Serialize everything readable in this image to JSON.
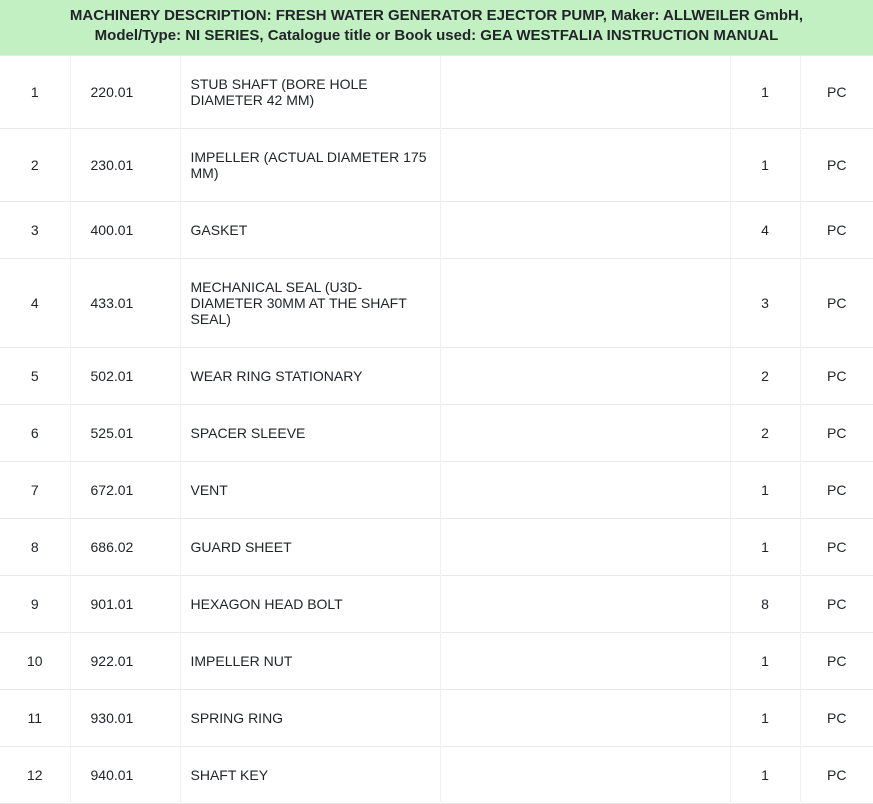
{
  "header": {
    "title": "MACHINERY DESCRIPTION: FRESH WATER GENERATOR EJECTOR PUMP, Maker: ALLWEILER GmbH, Model/Type: NI SERIES, Catalogue title or Book used: GEA WESTFALIA INSTRUCTION MANUAL"
  },
  "rows": [
    {
      "no": "1",
      "code": "220.01",
      "desc": "STUB SHAFT (BORE HOLE DIAMETER 42 MM)",
      "qty": "1",
      "unit": "PC"
    },
    {
      "no": "2",
      "code": "230.01",
      "desc": "IMPELLER (ACTUAL DIAMETER 175 MM)",
      "qty": "1",
      "unit": "PC"
    },
    {
      "no": "3",
      "code": "400.01",
      "desc": "GASKET",
      "qty": "4",
      "unit": "PC"
    },
    {
      "no": "4",
      "code": "433.01",
      "desc": "MECHANICAL SEAL (U3D-DIAMETER 30MM AT THE SHAFT SEAL)",
      "qty": "3",
      "unit": "PC"
    },
    {
      "no": "5",
      "code": "502.01",
      "desc": "WEAR RING STATIONARY",
      "qty": "2",
      "unit": "PC"
    },
    {
      "no": "6",
      "code": "525.01",
      "desc": "SPACER SLEEVE",
      "qty": "2",
      "unit": "PC"
    },
    {
      "no": "7",
      "code": "672.01",
      "desc": "VENT",
      "qty": "1",
      "unit": "PC"
    },
    {
      "no": "8",
      "code": "686.02",
      "desc": "GUARD SHEET",
      "qty": "1",
      "unit": "PC"
    },
    {
      "no": "9",
      "code": "901.01",
      "desc": "HEXAGON HEAD BOLT",
      "qty": "8",
      "unit": "PC"
    },
    {
      "no": "10",
      "code": "922.01",
      "desc": "IMPELLER NUT",
      "qty": "1",
      "unit": "PC"
    },
    {
      "no": "11",
      "code": "930.01",
      "desc": "SPRING RING",
      "qty": "1",
      "unit": "PC"
    },
    {
      "no": "12",
      "code": "940.01",
      "desc": "SHAFT KEY",
      "qty": "1",
      "unit": "PC"
    }
  ]
}
